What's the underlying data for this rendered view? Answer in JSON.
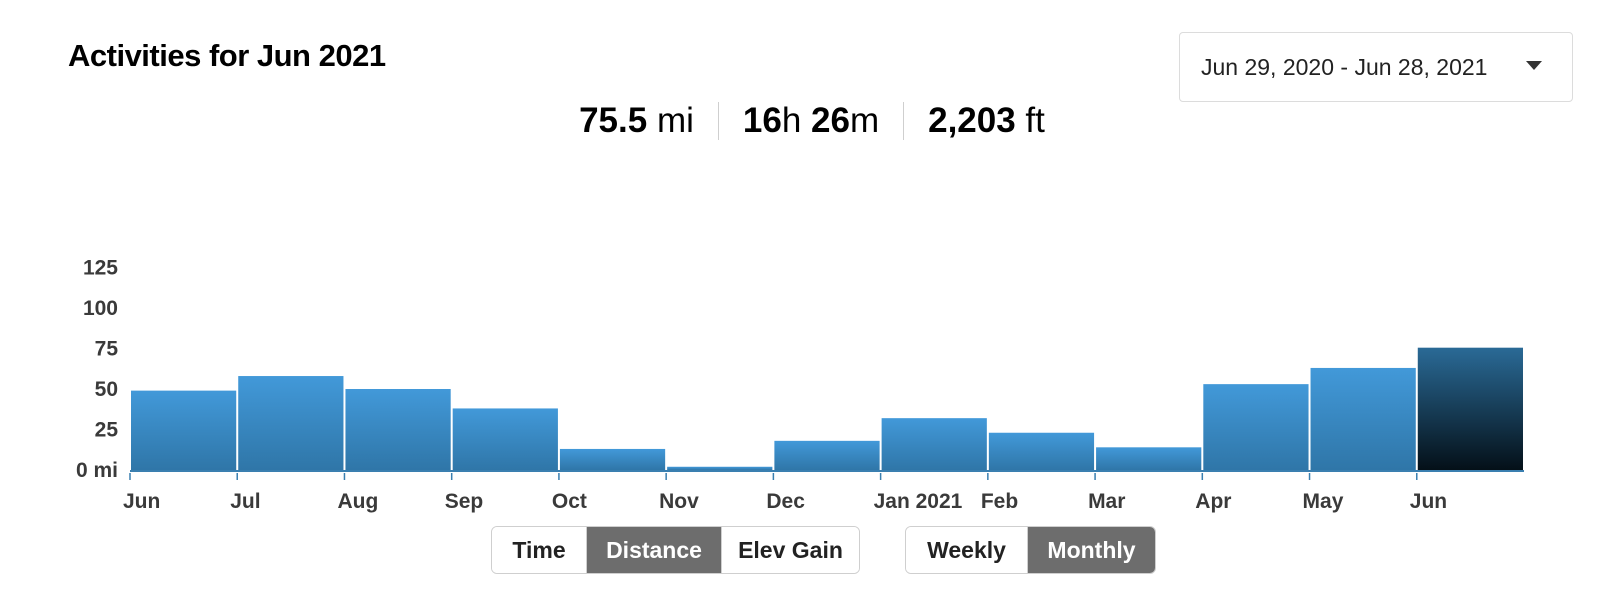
{
  "header": {
    "title": "Activities for Jun 2021",
    "date_range": "Jun 29, 2020 - Jun 28, 2021"
  },
  "stats": [
    {
      "value": "75.5",
      "unit": " mi"
    },
    {
      "value": "16",
      "unit": "h ",
      "value2": "26",
      "unit2": "m"
    },
    {
      "value": "2,203",
      "unit": " ft"
    }
  ],
  "metric_toggle": {
    "options": [
      "Time",
      "Distance",
      "Elev Gain"
    ],
    "selected": "Distance"
  },
  "period_toggle": {
    "options": [
      "Weekly",
      "Monthly"
    ],
    "selected": "Monthly"
  },
  "colors": {
    "bar_top": "#4299d9",
    "bar_bottom": "#2f76a8",
    "selected_top": "#2a6a96",
    "selected_bottom": "#041018",
    "tick": "#3a7fb0"
  },
  "chart_data": {
    "type": "bar",
    "categories": [
      "Jun",
      "Jul",
      "Aug",
      "Sep",
      "Oct",
      "Nov",
      "Dec",
      "Jan 2021",
      "Feb",
      "Mar",
      "Apr",
      "May",
      "Jun"
    ],
    "values": [
      49,
      58,
      50,
      38,
      13,
      2,
      18,
      32,
      23,
      14,
      53,
      63,
      75.5
    ],
    "selected_index": 12,
    "title": "",
    "xlabel": "",
    "ylabel": "",
    "y_ticks": [
      "0 mi",
      "25",
      "50",
      "75",
      "100",
      "125"
    ],
    "y_tick_values": [
      0,
      25,
      50,
      75,
      100,
      125
    ],
    "ylim": [
      0,
      125
    ],
    "grid": false,
    "legend": "none"
  }
}
